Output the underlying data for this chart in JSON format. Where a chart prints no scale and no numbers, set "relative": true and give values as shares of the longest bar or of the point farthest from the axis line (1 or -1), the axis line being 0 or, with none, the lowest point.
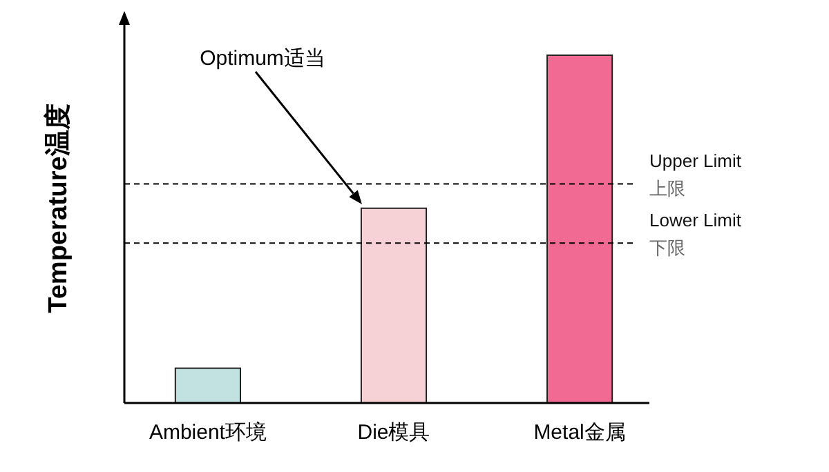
{
  "chart_data": {
    "type": "bar",
    "relative": true,
    "ylabel": "Temperature温度",
    "categories": [
      "Ambient环境",
      "Die模具",
      "Metal金属"
    ],
    "values": [
      0.1,
      0.56,
      1
    ],
    "colors": [
      "#c2e2e2",
      "#f6d2d6",
      "#f06a94"
    ],
    "ref_lines": [
      {
        "axis": "y",
        "value": 0.63,
        "label": "Upper Limit\n上限",
        "line_style": "dashed",
        "color": "#000000"
      },
      {
        "axis": "y",
        "value": 0.46,
        "label": "Lower Limit\n下限",
        "line_style": "dashed",
        "color": "#000000"
      }
    ],
    "annotations": [
      "Optimum适当"
    ]
  }
}
